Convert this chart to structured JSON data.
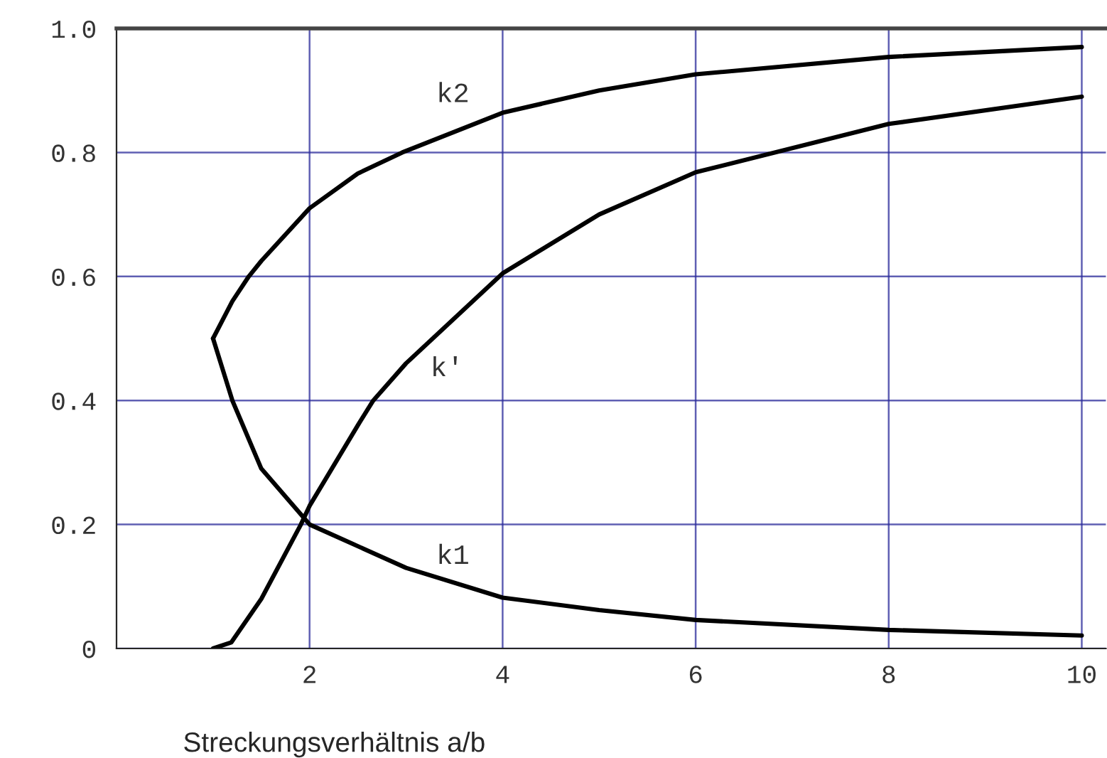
{
  "chart_data": {
    "type": "line",
    "xlabel": "Streckungsverhältnis a/b",
    "xlim": [
      0,
      10.25
    ],
    "ylim": [
      0,
      1.0
    ],
    "xticks": [
      2,
      4,
      6,
      8,
      10
    ],
    "yticks": [
      {
        "value": 0,
        "label": "0"
      },
      0.2,
      0.4,
      0.6,
      0.8,
      {
        "value": 1.0,
        "label": "1.0"
      }
    ],
    "grid": true,
    "marker": "none",
    "line_style": "solid",
    "series": [
      {
        "name": "k2",
        "color": "#000000",
        "x": [
          1,
          1.2,
          1.37,
          1.5,
          2,
          2.5,
          2.96,
          4,
          5,
          6,
          8,
          10
        ],
        "values": [
          0.5,
          0.56,
          0.6,
          0.625,
          0.71,
          0.766,
          0.8,
          0.864,
          0.9,
          0.926,
          0.954,
          0.97
        ]
      },
      {
        "name": "k'",
        "color": "#000000",
        "x": [
          1,
          1.19,
          1.5,
          1.91,
          2,
          2.5,
          2.66,
          3,
          4,
          5,
          6,
          8,
          10
        ],
        "values": [
          0,
          0.01,
          0.08,
          0.2,
          0.23,
          0.36,
          0.4,
          0.46,
          0.605,
          0.7,
          0.768,
          0.846,
          0.89
        ]
      },
      {
        "name": "k1",
        "color": "#000000",
        "x": [
          1,
          1.2,
          1.5,
          2,
          3,
          4,
          5,
          6,
          8,
          10
        ],
        "values": [
          0.5,
          0.4,
          0.29,
          0.2,
          0.13,
          0.082,
          0.062,
          0.046,
          0.03,
          0.021
        ]
      }
    ]
  }
}
